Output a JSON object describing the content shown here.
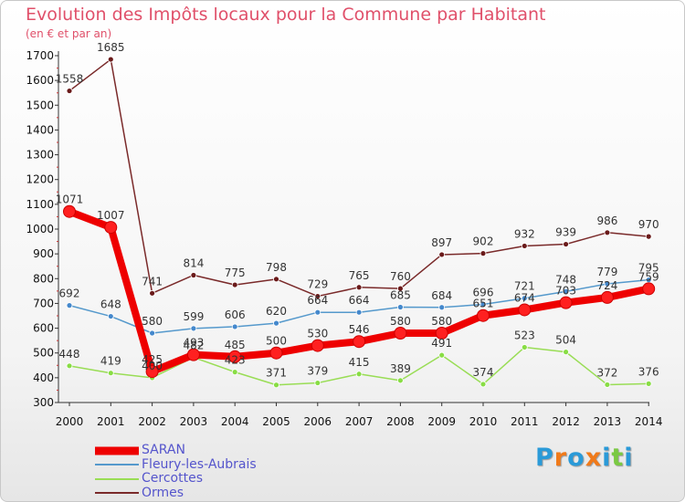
{
  "chart_data": {
    "type": "line",
    "title": "Evolution des Impôts locaux pour la Commune par Habitant",
    "subtitle": "(en € et par an)",
    "x": [
      "2000",
      "2001",
      "2002",
      "2003",
      "2004",
      "2005",
      "2006",
      "2007",
      "2008",
      "2009",
      "2010",
      "2011",
      "2012",
      "2013",
      "2014"
    ],
    "ylim": [
      300,
      1700
    ],
    "yticks": [
      300,
      400,
      500,
      600,
      700,
      800,
      900,
      1000,
      1100,
      1200,
      1300,
      1400,
      1500,
      1600,
      1700
    ],
    "grid": false,
    "legend_position": "bottom-left",
    "series": [
      {
        "name": "SARAN",
        "color": "#ee0000",
        "values": [
          1071,
          1007,
          425,
          493,
          485,
          500,
          530,
          546,
          580,
          580,
          651,
          674,
          703,
          724,
          759
        ]
      },
      {
        "name": "Fleury-les-Aubrais",
        "color": "#5599cc",
        "values": [
          692,
          648,
          580,
          599,
          606,
          620,
          664,
          664,
          685,
          684,
          696,
          721,
          748,
          779,
          795
        ]
      },
      {
        "name": "Cercottes",
        "color": "#99dd55",
        "values": [
          448,
          419,
          400,
          482,
          423,
          371,
          379,
          415,
          389,
          491,
          374,
          523,
          504,
          372,
          376
        ]
      },
      {
        "name": "Ormes",
        "color": "#7a2a2a",
        "values": [
          1558,
          1685,
          741,
          814,
          775,
          798,
          729,
          765,
          760,
          897,
          902,
          932,
          939,
          986,
          970
        ]
      }
    ]
  },
  "logo": {
    "letters": [
      "P",
      "r",
      "o",
      "x",
      "i",
      "t",
      "i"
    ],
    "colors": [
      "#2a9ad8",
      "#f07a1a",
      "#2a9ad8",
      "#f07a1a",
      "#2a9ad8",
      "#7ac943",
      "#2a9ad8"
    ]
  }
}
